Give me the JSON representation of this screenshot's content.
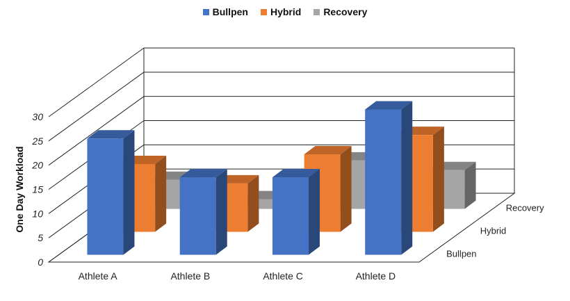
{
  "chart_data": {
    "type": "bar",
    "title": "",
    "xlabel": "",
    "ylabel": "One Day Workload",
    "ylim": [
      0,
      30
    ],
    "y_ticks": [
      0,
      5,
      10,
      15,
      20,
      25,
      30
    ],
    "categories": [
      "Athlete A",
      "Athlete B",
      "Athlete C",
      "Athlete D"
    ],
    "series": [
      {
        "name": "Bullpen",
        "color": "#4472C4",
        "values": [
          24,
          16,
          16,
          30
        ]
      },
      {
        "name": "Hybrid",
        "color": "#ED7D31",
        "values": [
          14,
          10,
          16,
          20
        ]
      },
      {
        "name": "Recovery",
        "color": "#A5A5A5",
        "values": [
          6,
          2,
          10,
          8
        ]
      }
    ],
    "depth_labels": [
      "Bullpen",
      "Hybrid",
      "Recovery"
    ],
    "legend_position": "top",
    "grid": true
  }
}
